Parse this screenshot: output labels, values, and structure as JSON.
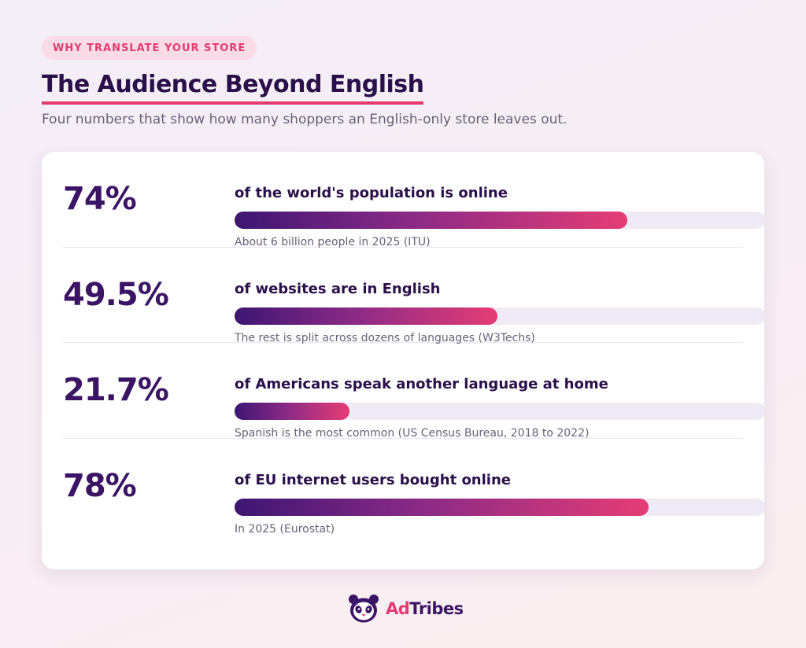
{
  "header": {
    "eyebrow": "WHY TRANSLATE YOUR STORE",
    "title": "The Audience Beyond English",
    "subtitle": "Four numbers that show how many shoppers an English-only store leaves out."
  },
  "chart_data": {
    "type": "bar",
    "orientation": "horizontal",
    "ylim": [
      0,
      100
    ],
    "unit": "%",
    "stats": [
      {
        "value": 74,
        "display": "74%",
        "label": "of the world's population is online",
        "note": "About 6 billion people in 2025 (ITU)"
      },
      {
        "value": 49.5,
        "display": "49.5%",
        "label": "of websites are in English",
        "note": "The rest is split across dozens of languages (W3Techs)"
      },
      {
        "value": 21.7,
        "display": "21.7%",
        "label": "of Americans speak another language at home",
        "note": "Spanish is the most common (US Census Bureau, 2018 to 2022)"
      },
      {
        "value": 78,
        "display": "78%",
        "label": "of EU internet users bought online",
        "note": "In 2025 (Eurostat)"
      }
    ]
  },
  "brand": {
    "logo_icon": "panda-icon",
    "name_part1": "Ad",
    "name_part2": "Tribes"
  },
  "colors": {
    "accent": "#e23c6f",
    "primary": "#3b1466",
    "track": "#f0e9f6"
  }
}
